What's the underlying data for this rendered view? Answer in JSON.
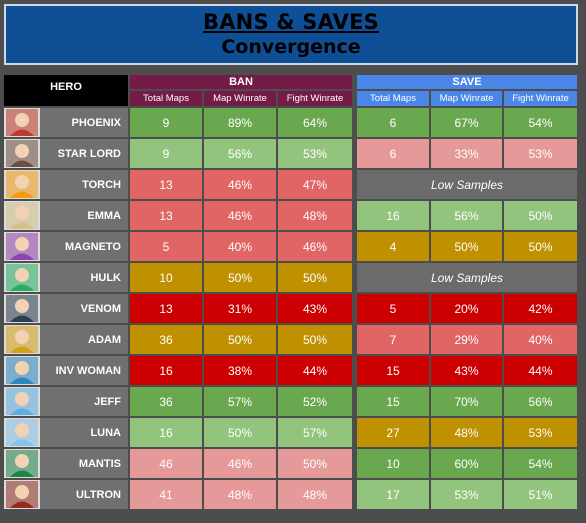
{
  "title": "BANS & SAVES",
  "subtitle": "Convergence",
  "header": {
    "hero": "HERO",
    "ban": "BAN",
    "save": "SAVE",
    "cols": [
      "Total Maps",
      "Map Winrate",
      "Fight Winrate"
    ]
  },
  "low_samples_label": "Low Samples",
  "colors": {
    "dg": "#6aa84f",
    "lg": "#93c47d",
    "lr": "#e69999",
    "r": "#e06666",
    "dr": "#cc0000",
    "go": "#bf9000",
    "ban_header": "#741b47",
    "save_header": "#4a86e8",
    "banner": "#0e4f96"
  },
  "rows": [
    {
      "hero": "PHOENIX",
      "avatar": "phoenix-avatar",
      "color": "#c0392b",
      "ban": [
        {
          "v": "9",
          "c": "dg"
        },
        {
          "v": "89%",
          "c": "dg"
        },
        {
          "v": "64%",
          "c": "dg"
        }
      ],
      "save": [
        {
          "v": "6",
          "c": "dg"
        },
        {
          "v": "67%",
          "c": "dg"
        },
        {
          "v": "54%",
          "c": "dg"
        }
      ]
    },
    {
      "hero": "STAR LORD",
      "avatar": "star-lord-avatar",
      "color": "#6d4c41",
      "ban": [
        {
          "v": "9",
          "c": "lg"
        },
        {
          "v": "56%",
          "c": "lg"
        },
        {
          "v": "53%",
          "c": "lg"
        }
      ],
      "save": [
        {
          "v": "6",
          "c": "lr"
        },
        {
          "v": "33%",
          "c": "lr"
        },
        {
          "v": "53%",
          "c": "lr"
        }
      ]
    },
    {
      "hero": "TORCH",
      "avatar": "torch-avatar",
      "color": "#f39c12",
      "ban": [
        {
          "v": "13",
          "c": "r"
        },
        {
          "v": "46%",
          "c": "r"
        },
        {
          "v": "47%",
          "c": "r"
        }
      ],
      "save": null
    },
    {
      "hero": "EMMA",
      "avatar": "emma-avatar",
      "color": "#d4c089",
      "ban": [
        {
          "v": "13",
          "c": "r"
        },
        {
          "v": "46%",
          "c": "r"
        },
        {
          "v": "48%",
          "c": "r"
        }
      ],
      "save": [
        {
          "v": "16",
          "c": "lg"
        },
        {
          "v": "56%",
          "c": "lg"
        },
        {
          "v": "50%",
          "c": "lg"
        }
      ]
    },
    {
      "hero": "MAGNETO",
      "avatar": "magneto-avatar",
      "color": "#8e44ad",
      "ban": [
        {
          "v": "5",
          "c": "r"
        },
        {
          "v": "40%",
          "c": "r"
        },
        {
          "v": "46%",
          "c": "r"
        }
      ],
      "save": [
        {
          "v": "4",
          "c": "go"
        },
        {
          "v": "50%",
          "c": "go"
        },
        {
          "v": "50%",
          "c": "go"
        }
      ]
    },
    {
      "hero": "HULK",
      "avatar": "hulk-avatar",
      "color": "#27ae60",
      "ban": [
        {
          "v": "10",
          "c": "go"
        },
        {
          "v": "50%",
          "c": "go"
        },
        {
          "v": "50%",
          "c": "go"
        }
      ],
      "save": null
    },
    {
      "hero": "VENOM",
      "avatar": "venom-avatar",
      "color": "#2c3e50",
      "ban": [
        {
          "v": "13",
          "c": "dr"
        },
        {
          "v": "31%",
          "c": "dr"
        },
        {
          "v": "43%",
          "c": "dr"
        }
      ],
      "save": [
        {
          "v": "5",
          "c": "dr"
        },
        {
          "v": "20%",
          "c": "dr"
        },
        {
          "v": "42%",
          "c": "dr"
        }
      ]
    },
    {
      "hero": "ADAM",
      "avatar": "adam-avatar",
      "color": "#d4a017",
      "ban": [
        {
          "v": "36",
          "c": "go"
        },
        {
          "v": "50%",
          "c": "go"
        },
        {
          "v": "50%",
          "c": "go"
        }
      ],
      "save": [
        {
          "v": "7",
          "c": "r"
        },
        {
          "v": "29%",
          "c": "r"
        },
        {
          "v": "40%",
          "c": "r"
        }
      ]
    },
    {
      "hero": "INV WOMAN",
      "avatar": "inv-woman-avatar",
      "color": "#2e86c1",
      "ban": [
        {
          "v": "16",
          "c": "dr"
        },
        {
          "v": "38%",
          "c": "dr"
        },
        {
          "v": "44%",
          "c": "dr"
        }
      ],
      "save": [
        {
          "v": "15",
          "c": "dr"
        },
        {
          "v": "43%",
          "c": "dr"
        },
        {
          "v": "44%",
          "c": "dr"
        }
      ]
    },
    {
      "hero": "JEFF",
      "avatar": "jeff-avatar",
      "color": "#5dade2",
      "ban": [
        {
          "v": "36",
          "c": "dg"
        },
        {
          "v": "57%",
          "c": "dg"
        },
        {
          "v": "52%",
          "c": "dg"
        }
      ],
      "save": [
        {
          "v": "15",
          "c": "dg"
        },
        {
          "v": "70%",
          "c": "dg"
        },
        {
          "v": "56%",
          "c": "dg"
        }
      ]
    },
    {
      "hero": "LUNA",
      "avatar": "luna-avatar",
      "color": "#85c1e9",
      "ban": [
        {
          "v": "16",
          "c": "lg"
        },
        {
          "v": "50%",
          "c": "lg"
        },
        {
          "v": "57%",
          "c": "lg"
        }
      ],
      "save": [
        {
          "v": "27",
          "c": "go"
        },
        {
          "v": "48%",
          "c": "go"
        },
        {
          "v": "53%",
          "c": "go"
        }
      ]
    },
    {
      "hero": "MANTIS",
      "avatar": "mantis-avatar",
      "color": "#1e8449",
      "ban": [
        {
          "v": "46",
          "c": "lr"
        },
        {
          "v": "46%",
          "c": "lr"
        },
        {
          "v": "50%",
          "c": "lr"
        }
      ],
      "save": [
        {
          "v": "10",
          "c": "dg"
        },
        {
          "v": "60%",
          "c": "dg"
        },
        {
          "v": "54%",
          "c": "dg"
        }
      ]
    },
    {
      "hero": "ULTRON",
      "avatar": "ultron-avatar",
      "color": "#922b21",
      "ban": [
        {
          "v": "41",
          "c": "lr"
        },
        {
          "v": "48%",
          "c": "lr"
        },
        {
          "v": "48%",
          "c": "lr"
        }
      ],
      "save": [
        {
          "v": "17",
          "c": "lg"
        },
        {
          "v": "53%",
          "c": "lg"
        },
        {
          "v": "51%",
          "c": "lg"
        }
      ]
    }
  ]
}
